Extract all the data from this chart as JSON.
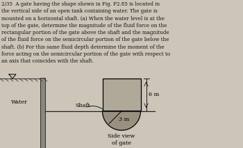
{
  "bg_color": "#ccc5b8",
  "text_color": "#111111",
  "title_text": "2/35  A gate having the shape shown in Fig. P2.85 is located in\nthe vertical side of an open tank containing water. The gate is\nmounted on a horizontal shaft. (a) When the water level is at the\ntop of the gate, determine the magnitude of the fluid force on the\nrectangular portion of the gate above the shaft and the magnitude\nof the fluid force on the semicircular portion of the gate below the\nshaft. (b) For this same fluid depth determine the moment of the\nforce acting on the semicircular portion of the gate with respect to\nan axis that coincides with the shaft.",
  "label_water": "Water",
  "label_shaft": "Shaft",
  "label_6m": "6 m",
  "label_3m": "3 m",
  "label_side_view": "Side view\nof gate",
  "gate_rect_color": "#b0a898",
  "gate_semi_color": "#9a9080",
  "wall_color": "#888880",
  "shaft_line_color": "#222222",
  "text_fontsize": 5.1,
  "diagram_label_fontsize": 5.8
}
